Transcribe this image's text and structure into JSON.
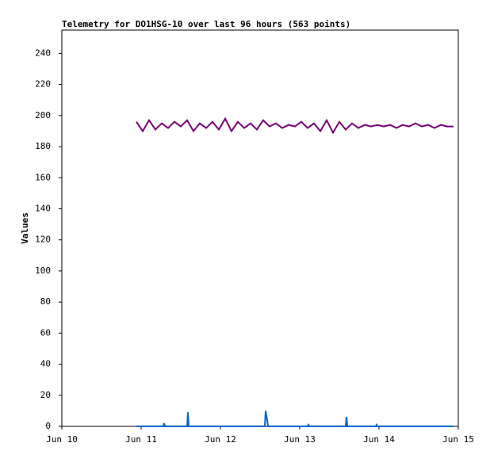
{
  "chart_data": {
    "type": "line",
    "title": "Telemetry for DO1HSG-10 over last 96 hours (563 points)",
    "y_label": "Values",
    "xlim": [
      10,
      15
    ],
    "xticks": [
      {
        "value": 10,
        "label": "Jun 10"
      },
      {
        "value": 11,
        "label": "Jun 11"
      },
      {
        "value": 12,
        "label": "Jun 12"
      },
      {
        "value": 13,
        "label": "Jun 13"
      },
      {
        "value": 14,
        "label": "Jun 14"
      },
      {
        "value": 15,
        "label": "Jun 15"
      }
    ],
    "ylim": [
      0,
      255
    ],
    "yticks": [
      0,
      20,
      40,
      60,
      80,
      100,
      120,
      140,
      160,
      180,
      200,
      220,
      240
    ],
    "series": [
      {
        "color": "#770077",
        "x": [
          10.94,
          11.02,
          11.1,
          11.18,
          11.26,
          11.34,
          11.42,
          11.5,
          11.58,
          11.66,
          11.74,
          11.82,
          11.9,
          11.98,
          12.06,
          12.14,
          12.22,
          12.3,
          12.38,
          12.46,
          12.54,
          12.62,
          12.7,
          12.78,
          12.86,
          12.94,
          13.02,
          13.1,
          13.18,
          13.26,
          13.34,
          13.42,
          13.5,
          13.58,
          13.66,
          13.74,
          13.82,
          13.9,
          13.98,
          14.06,
          14.14,
          14.22,
          14.3,
          14.38,
          14.46,
          14.54,
          14.62,
          14.7,
          14.78,
          14.86,
          14.94
        ],
        "values": [
          196,
          190,
          197,
          191,
          195,
          192,
          196,
          193,
          197,
          190,
          195,
          192,
          196,
          191,
          198,
          190,
          196,
          192,
          195,
          191,
          197,
          193,
          195,
          192,
          194,
          193,
          196,
          192,
          195,
          190,
          197,
          189,
          196,
          191,
          195,
          192,
          194,
          193,
          194,
          193,
          194,
          192,
          194,
          193,
          195,
          193,
          194,
          192,
          194,
          193,
          193
        ]
      },
      {
        "color": "#0066cc",
        "x": [
          10.94,
          11.28,
          11.29,
          11.3,
          11.58,
          11.59,
          11.6,
          12.56,
          12.57,
          12.59,
          12.6,
          13.1,
          13.11,
          13.12,
          13.58,
          13.59,
          13.6,
          13.96,
          13.97,
          13.98,
          14.94
        ],
        "values": [
          0,
          0,
          2,
          0,
          0,
          9,
          0,
          0,
          10,
          4,
          0,
          0,
          1,
          0,
          0,
          6,
          0,
          0,
          1,
          0,
          0
        ]
      }
    ]
  }
}
